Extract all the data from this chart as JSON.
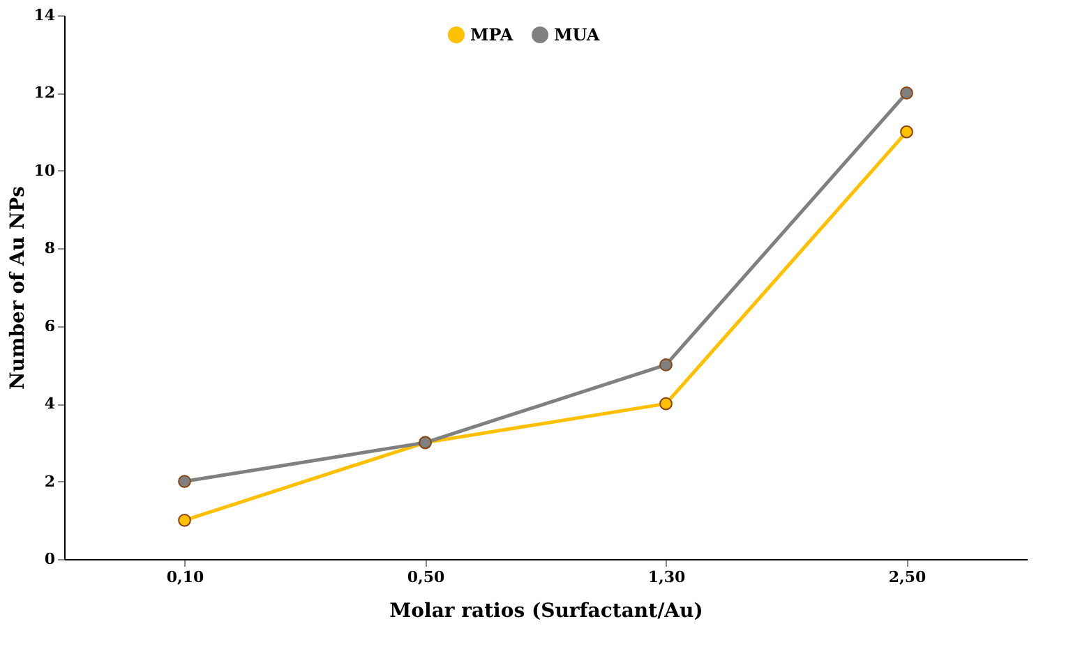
{
  "chart_data": {
    "type": "line",
    "xlabel": "Molar ratios (Surfactant/Au)",
    "ylabel": "Number of Au NPs",
    "categories": [
      "0,10",
      "0,50",
      "1,30",
      "2,50"
    ],
    "series": [
      {
        "name": "MPA",
        "color": "#ffc000",
        "values": [
          1,
          3,
          4,
          11
        ]
      },
      {
        "name": "MUA",
        "color": "#808080",
        "values": [
          2,
          3,
          5,
          12
        ]
      }
    ],
    "ylim": [
      0,
      14
    ],
    "yticks": [
      0,
      2,
      4,
      6,
      8,
      10,
      12,
      14
    ],
    "grid": false,
    "legend": "top",
    "marker": "circle",
    "line_style": "solid"
  }
}
